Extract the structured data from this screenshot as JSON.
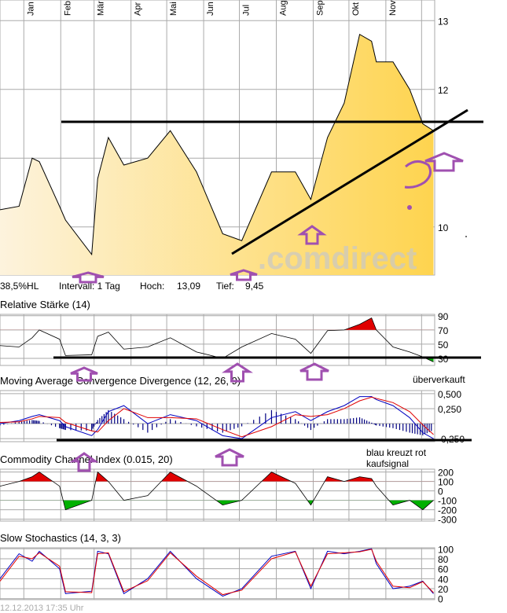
{
  "colors": {
    "grid": "#aaaaaa",
    "fill_start": "#fdf3dd",
    "fill_end": "#fed44f",
    "annotation": "#a050b0",
    "up": "#e00000",
    "down": "#00b000",
    "macd": "#0000c0",
    "signal": "#e00000",
    "watermark": "#c8c8c8"
  },
  "watermark": ".comdirect",
  "months": [
    "Jan",
    "Feb",
    "Mär",
    "Apr",
    "Mai",
    "Jun",
    "Jul",
    "Aug",
    "Sep",
    "Okt",
    "Nov"
  ],
  "month_starts": [
    "2013-01-01",
    "2013-02-01",
    "2013-03-01",
    "2013-04-01",
    "2013-05-01",
    "2013-06-01",
    "2013-07-01",
    "2013-08-01",
    "2013-09-01",
    "2013-10-01",
    "2013-11-01",
    "2013-12-01"
  ],
  "info": {
    "scale": "38,5%HL",
    "interval": "Intervall: 1 Tag",
    "high_label": "Hoch:",
    "high": "13,09",
    "low_label": "Tief:",
    "low": "9,45"
  },
  "annotations": {
    "oversold": "überverkauft",
    "cross1": "blau kreuzt rot",
    "cross2": "kaufsignal",
    "question": "?"
  },
  "footer": "12.12.2013 17:35 Uhr",
  "chart_data": [
    {
      "type": "area",
      "title": "",
      "xrange": [
        "2012-12-12",
        "2013-12-12"
      ],
      "ylim": [
        9.3,
        13.3
      ],
      "yticks": [
        10,
        11,
        12,
        13
      ],
      "ytick_labels": [
        "10",
        "",
        "12",
        "13"
      ],
      "grid": true,
      "x": [
        "2012-12-12",
        "2012-12-28",
        "2013-01-08",
        "2013-01-14",
        "2013-01-31",
        "2013-02-05",
        "2013-02-27",
        "2013-03-04",
        "2013-03-13",
        "2013-03-26",
        "2013-04-15",
        "2013-05-04",
        "2013-05-26",
        "2013-06-17",
        "2013-07-03",
        "2013-07-28",
        "2013-08-17",
        "2013-08-30",
        "2013-09-13",
        "2013-09-27",
        "2013-10-10",
        "2013-10-20",
        "2013-10-24",
        "2013-11-07",
        "2013-11-21",
        "2013-12-02",
        "2013-12-11"
      ],
      "values": [
        10.25,
        10.3,
        11.0,
        10.95,
        10.3,
        10.1,
        9.6,
        10.7,
        11.3,
        10.9,
        11.0,
        11.4,
        10.8,
        9.9,
        9.8,
        10.8,
        10.8,
        10.4,
        11.3,
        11.8,
        12.8,
        12.7,
        12.4,
        12.4,
        12.0,
        11.5,
        11.4
      ]
    },
    {
      "type": "line",
      "title": "Relative Stärke (14)",
      "ylim": [
        20,
        92
      ],
      "yticks": [
        30,
        50,
        70,
        90
      ],
      "ytick_labels": [
        "30",
        "50",
        "70",
        "90"
      ],
      "overbought": 70,
      "oversold": 30,
      "values": [
        48,
        46,
        59,
        70,
        57,
        34,
        35,
        61,
        67,
        43,
        46,
        59,
        39,
        30,
        46,
        65,
        57,
        37,
        69,
        70,
        78,
        87,
        70,
        46,
        39,
        32,
        25
      ]
    },
    {
      "type": "line",
      "title": "Moving Average Convergence Divergence (12, 26, 9)",
      "ylim": [
        -0.3,
        0.55
      ],
      "yticks": [
        -0.25,
        0,
        0.25,
        0.5
      ],
      "ytick_labels": [
        "-0,250",
        "",
        "0,250",
        "0,500"
      ],
      "series": [
        {
          "values": [
            0.0,
            0.05,
            0.12,
            0.15,
            0.05,
            -0.05,
            -0.2,
            -0.1,
            0.2,
            0.3,
            0.0,
            0.15,
            0.05,
            -0.2,
            -0.25,
            0.1,
            0.2,
            0.05,
            0.2,
            0.3,
            0.45,
            0.45,
            0.4,
            0.3,
            0.1,
            -0.15,
            -0.25
          ]
        },
        {
          "values": [
            0.02,
            0.03,
            0.08,
            0.12,
            0.1,
            0.02,
            -0.12,
            -0.14,
            0.05,
            0.25,
            0.1,
            0.1,
            0.08,
            -0.1,
            -0.22,
            -0.05,
            0.15,
            0.12,
            0.15,
            0.25,
            0.38,
            0.44,
            0.42,
            0.35,
            0.2,
            -0.02,
            -0.18
          ]
        }
      ]
    },
    {
      "type": "line",
      "title": "Commodity Channel Index (0.015, 20)",
      "ylim": [
        -320,
        230
      ],
      "yticks": [
        -300,
        -200,
        -100,
        0,
        100,
        200
      ],
      "ytick_labels": [
        "-300",
        "-200",
        "-100",
        "0",
        "100",
        "200"
      ],
      "overbought": 100,
      "oversold": -100,
      "values": [
        50,
        100,
        150,
        200,
        50,
        -200,
        -100,
        200,
        100,
        -100,
        -50,
        200,
        50,
        -150,
        -100,
        200,
        80,
        -150,
        150,
        100,
        150,
        130,
        50,
        -150,
        -100,
        -200,
        -100
      ]
    },
    {
      "type": "line",
      "title": "Slow Stochastics (14, 3, 3)",
      "ylim": [
        -2,
        102
      ],
      "yticks": [
        0,
        20,
        40,
        60,
        80,
        100
      ],
      "ytick_labels": [
        "0",
        "20",
        "40",
        "60",
        "80",
        "100"
      ],
      "series": [
        {
          "values": [
            40,
            90,
            75,
            95,
            60,
            10,
            15,
            95,
            90,
            10,
            40,
            95,
            40,
            5,
            20,
            85,
            95,
            20,
            95,
            90,
            95,
            100,
            70,
            20,
            25,
            35,
            10
          ]
        },
        {
          "values": [
            35,
            85,
            80,
            92,
            65,
            14,
            12,
            90,
            92,
            14,
            36,
            92,
            45,
            8,
            17,
            80,
            94,
            25,
            90,
            92,
            94,
            99,
            75,
            25,
            22,
            34,
            12
          ]
        }
      ]
    }
  ]
}
